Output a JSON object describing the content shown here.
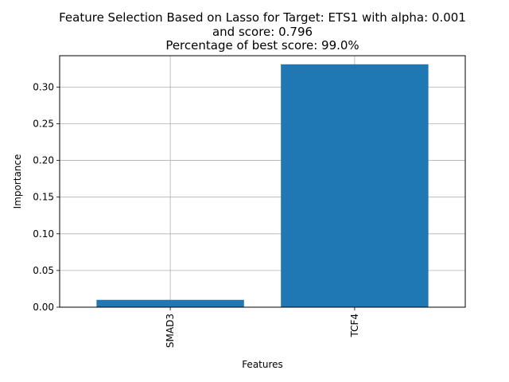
{
  "chart_data": {
    "type": "bar",
    "title_lines": [
      "Feature Selection Based on Lasso for Target: ETS1 with alpha: 0.001",
      "and score: 0.796",
      "Percentage of best score: 99.0%"
    ],
    "xlabel": "Features",
    "ylabel": "Importance",
    "categories": [
      "SMAD3",
      "TCF4"
    ],
    "values": [
      0.01,
      0.331
    ],
    "ylim": [
      0,
      0.3427
    ],
    "yticks": [
      0.0,
      0.05,
      0.1,
      0.15,
      0.2,
      0.25,
      0.3
    ],
    "ytick_labels": [
      "0.00",
      "0.05",
      "0.10",
      "0.15",
      "0.20",
      "0.25",
      "0.30"
    ],
    "grid": true,
    "bar_color": "#1f77b4"
  }
}
